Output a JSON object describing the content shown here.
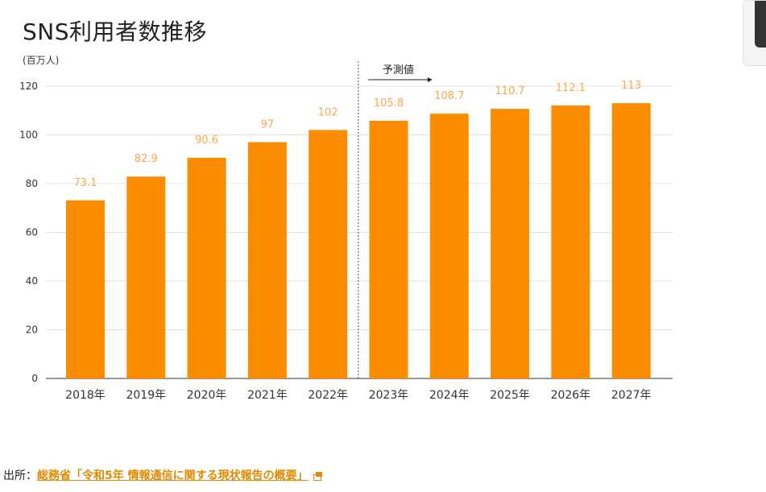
{
  "page": {
    "source_prefix": "出所：",
    "source_link_text": "総務省「令和5年 情報通信に関する現状報告の概要」"
  },
  "colors": {
    "bar": "#fb8c00",
    "label": "#f7a84a",
    "grid": "#e0e0e0",
    "link": "#e08a00"
  },
  "icons": {
    "external_link": "external-link-icon"
  },
  "chart_data": {
    "type": "bar",
    "title": "SNS利用者数推移",
    "ylabel": "(百万人)",
    "xlabel": "",
    "categories": [
      "2018年",
      "2019年",
      "2020年",
      "2021年",
      "2022年",
      "2023年",
      "2024年",
      "2025年",
      "2026年",
      "2027年"
    ],
    "values": [
      73.1,
      82.9,
      90.6,
      97,
      102,
      105.8,
      108.7,
      110.7,
      112.1,
      113
    ],
    "data_labels": [
      "73.1",
      "82.9",
      "90.6",
      "97",
      "102",
      "105.8",
      "108.7",
      "110.7",
      "112.1",
      "113"
    ],
    "ylim": [
      0,
      120
    ],
    "yticks": [
      "0",
      "20",
      "40",
      "60",
      "80",
      "100",
      "120"
    ],
    "grid": true,
    "legend": "none",
    "annotation": {
      "text": "予測値",
      "starts_after_category": "2022年",
      "style": "dotted vertical divider with right arrow"
    }
  }
}
